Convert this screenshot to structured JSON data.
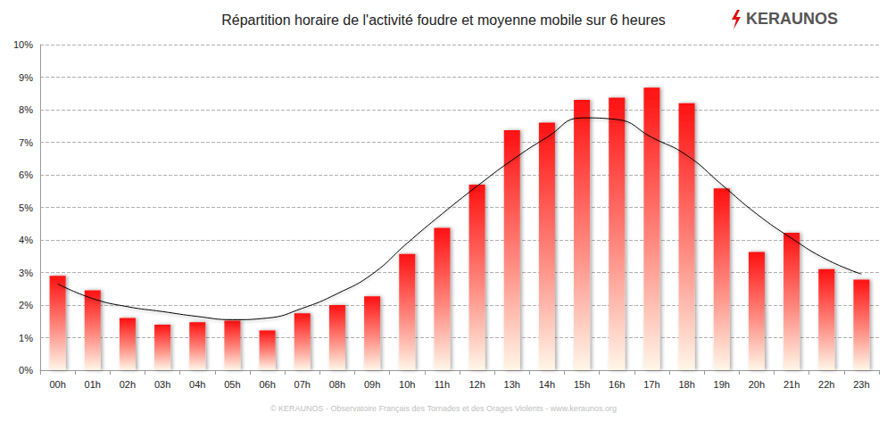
{
  "chart_data": {
    "type": "bar",
    "title": "Répartition horaire de l'activité foudre et moyenne mobile sur 6 heures",
    "logo": "KERAUNOS",
    "footer": "© KERAUNOS - Observatoire Français des Tornades et des Orages Violents - www.keraunos.org",
    "categories": [
      "00h",
      "01h",
      "02h",
      "03h",
      "04h",
      "05h",
      "06h",
      "07h",
      "08h",
      "09h",
      "10h",
      "11h",
      "12h",
      "13h",
      "14h",
      "15h",
      "16h",
      "17h",
      "18h",
      "19h",
      "20h",
      "21h",
      "22h",
      "23h"
    ],
    "series": [
      {
        "type": "bar",
        "color": "#ff1010",
        "values": [
          2.9,
          2.45,
          1.6,
          1.4,
          1.47,
          1.52,
          1.22,
          1.75,
          2.0,
          2.27,
          3.57,
          4.37,
          5.7,
          7.37,
          7.6,
          8.3,
          8.37,
          8.68,
          8.2,
          5.58,
          3.63,
          4.22,
          3.1,
          2.78
        ]
      },
      {
        "type": "line",
        "color": "#000000",
        "line_style": "smooth",
        "values": [
          2.65,
          2.2,
          1.95,
          1.8,
          1.65,
          1.55,
          1.6,
          1.9,
          2.35,
          2.95,
          3.9,
          4.8,
          5.65,
          6.45,
          7.15,
          7.75,
          7.7,
          7.15,
          6.6,
          5.7,
          4.8,
          4.05,
          3.4,
          2.95
        ]
      }
    ],
    "ylim": [
      0,
      10
    ],
    "yticks": [
      {
        "value": 0,
        "label": "0%"
      },
      {
        "value": 1,
        "label": "1%"
      },
      {
        "value": 2,
        "label": "2%"
      },
      {
        "value": 3,
        "label": "3%"
      },
      {
        "value": 4,
        "label": "4%"
      },
      {
        "value": 5,
        "label": "5%"
      },
      {
        "value": 6,
        "label": "6%"
      },
      {
        "value": 7,
        "label": "7%"
      },
      {
        "value": 8,
        "label": "8%"
      },
      {
        "value": 9,
        "label": "9%"
      },
      {
        "value": 10,
        "label": "10%"
      }
    ],
    "grid": true
  }
}
